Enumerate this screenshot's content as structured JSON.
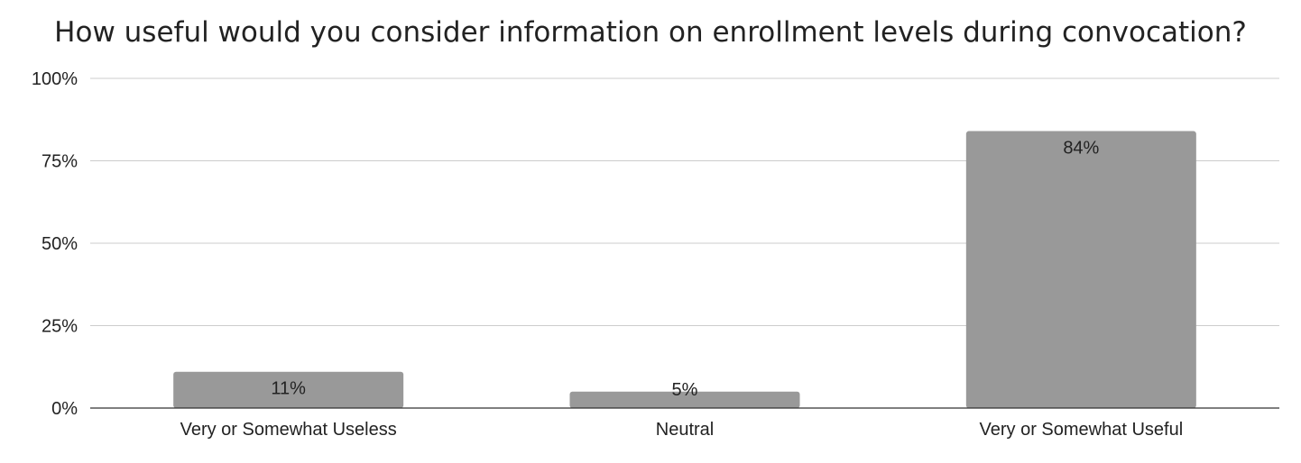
{
  "chart_data": {
    "type": "bar",
    "title": "How useful would you consider information on enrollment levels during convocation?",
    "categories": [
      "Very or Somewhat Useless",
      "Neutral",
      "Very or Somewhat Useful"
    ],
    "values": [
      11,
      5,
      84
    ],
    "data_labels": [
      "11%",
      "5%",
      "84%"
    ],
    "ylim": [
      0,
      100
    ],
    "yticks": [
      0,
      25,
      50,
      75,
      100
    ],
    "ytick_labels": [
      "0%",
      "25%",
      "50%",
      "75%",
      "100%"
    ],
    "xlabel": "",
    "ylabel": "",
    "grid": true,
    "bar_color": "#999999",
    "legend": "none"
  }
}
